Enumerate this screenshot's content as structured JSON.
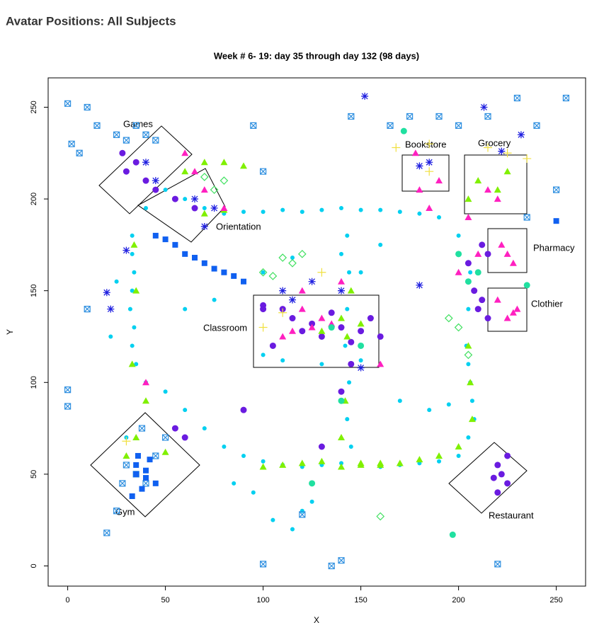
{
  "page_title": "Avatar Positions: All Subjects",
  "chart_data": {
    "type": "scatter",
    "title": "Week # 6- 19: day 35 through day 132 (98 days)",
    "x_label": "X",
    "y_label": "Y",
    "xlim": [
      -10,
      265
    ],
    "ylim": [
      -11,
      266
    ],
    "xticks": [
      0,
      50,
      100,
      150,
      200,
      250
    ],
    "yticks": [
      0,
      50,
      100,
      150,
      200,
      250
    ],
    "annotations": [
      "Games",
      "Orientation",
      "Bookstore",
      "Grocery",
      "Pharmacy",
      "Clothier",
      "Classroom",
      "Gym",
      "Restaurant"
    ],
    "series": [
      {
        "color": "#00d0f0",
        "marker": "circle",
        "x": [
          33,
          33,
          34,
          33,
          32,
          34,
          33,
          35,
          40,
          50,
          60,
          70,
          80,
          90,
          100,
          110,
          120,
          130,
          140,
          150,
          160,
          170,
          180,
          190,
          200,
          205,
          208,
          207,
          206,
          205,
          204,
          205,
          206,
          200,
          190,
          180,
          170,
          160,
          150,
          140,
          130,
          120,
          110,
          100,
          90,
          80,
          70,
          60,
          50,
          40,
          143,
          144,
          143,
          142,
          144,
          143,
          145,
          120,
          125,
          105,
          115,
          95,
          85,
          25,
          22,
          30,
          100,
          110,
          130,
          150,
          170,
          185,
          195,
          150,
          140,
          160,
          100,
          115,
          75,
          60
        ],
        "y": [
          180,
          170,
          160,
          150,
          140,
          130,
          120,
          110,
          100,
          95,
          85,
          75,
          65,
          60,
          57,
          55,
          54,
          55,
          56,
          55,
          54,
          55,
          56,
          57,
          60,
          70,
          80,
          90,
          100,
          110,
          120,
          140,
          160,
          180,
          190,
          192,
          193,
          194,
          194,
          195,
          194,
          193,
          194,
          193,
          193,
          192,
          195,
          200,
          205,
          195,
          180,
          160,
          140,
          120,
          100,
          80,
          65,
          30,
          35,
          25,
          20,
          40,
          45,
          155,
          125,
          70,
          115,
          112,
          110,
          112,
          90,
          85,
          88,
          160,
          170,
          175,
          160,
          168,
          145,
          140
        ]
      },
      {
        "color": "#6a1be0",
        "marker": "bigcircle",
        "x": [
          28,
          30,
          35,
          40,
          45,
          55,
          65,
          110,
          115,
          120,
          125,
          130,
          135,
          140,
          145,
          150,
          155,
          160,
          105,
          100,
          205,
          208,
          210,
          212,
          215,
          220,
          222,
          225,
          212,
          215,
          225,
          220,
          218,
          60,
          90,
          100,
          130,
          145,
          140,
          55
        ],
        "y": [
          225,
          215,
          220,
          210,
          205,
          200,
          195,
          140,
          135,
          128,
          132,
          125,
          138,
          130,
          122,
          128,
          135,
          125,
          120,
          142,
          165,
          150,
          140,
          175,
          170,
          55,
          50,
          45,
          145,
          135,
          60,
          40,
          48,
          70,
          85,
          140,
          65,
          110,
          95,
          75
        ]
      },
      {
        "color": "#80f000",
        "marker": "triangle",
        "x": [
          60,
          70,
          80,
          90,
          34,
          35,
          33,
          150,
          160,
          170,
          180,
          190,
          200,
          207,
          206,
          205,
          145,
          143,
          142,
          140,
          100,
          110,
          120,
          130,
          140,
          150,
          160,
          130,
          140,
          150,
          40,
          30,
          35,
          50,
          210,
          205,
          70,
          80,
          220,
          225
        ],
        "y": [
          215,
          220,
          220,
          218,
          175,
          150,
          110,
          56,
          55,
          56,
          58,
          60,
          65,
          80,
          100,
          120,
          150,
          125,
          90,
          70,
          54,
          55,
          56,
          57,
          54,
          55,
          56,
          128,
          135,
          132,
          90,
          60,
          70,
          62,
          210,
          200,
          192,
          194,
          205,
          215
        ]
      },
      {
        "color": "#3090e0",
        "marker": "boxx",
        "x": [
          0,
          2,
          6,
          10,
          15,
          25,
          30,
          35,
          40,
          45,
          0,
          0,
          10,
          95,
          100,
          120,
          135,
          140,
          145,
          165,
          175,
          190,
          200,
          215,
          230,
          240,
          255,
          250,
          235,
          220,
          38,
          35,
          40,
          30,
          28,
          45,
          50,
          20,
          25,
          100
        ],
        "y": [
          252,
          230,
          225,
          250,
          240,
          235,
          232,
          240,
          235,
          232,
          96,
          87,
          140,
          240,
          1,
          28,
          0,
          3,
          245,
          240,
          245,
          245,
          240,
          245,
          255,
          240,
          255,
          205,
          190,
          1,
          75,
          50,
          45,
          55,
          45,
          60,
          70,
          18,
          30,
          215
        ]
      },
      {
        "color": "#ff20c0",
        "marker": "triangle",
        "x": [
          60,
          65,
          70,
          125,
          130,
          115,
          120,
          135,
          110,
          180,
          185,
          190,
          178,
          215,
          220,
          225,
          228,
          222,
          230,
          225,
          220,
          228,
          200,
          210,
          205,
          120,
          140,
          160,
          80,
          40
        ],
        "y": [
          225,
          215,
          205,
          130,
          135,
          128,
          140,
          132,
          125,
          205,
          195,
          210,
          225,
          205,
          200,
          170,
          165,
          175,
          140,
          135,
          145,
          138,
          160,
          170,
          190,
          150,
          155,
          110,
          195,
          100
        ]
      },
      {
        "color": "#2020e0",
        "marker": "asterisk",
        "x": [
          152,
          213,
          232,
          222,
          45,
          40,
          30,
          20,
          22,
          180,
          185,
          110,
          115,
          140,
          125,
          70,
          75,
          65,
          180,
          150
        ],
        "y": [
          256,
          250,
          235,
          226,
          210,
          220,
          172,
          149,
          140,
          218,
          220,
          150,
          145,
          150,
          155,
          185,
          195,
          200,
          153,
          108
        ]
      },
      {
        "color": "#1060f0",
        "marker": "square",
        "x": [
          45,
          50,
          55,
          60,
          65,
          70,
          75,
          80,
          85,
          90,
          35,
          40,
          45,
          35,
          40,
          38,
          33,
          36,
          42,
          250
        ],
        "y": [
          180,
          178,
          175,
          170,
          168,
          165,
          162,
          160,
          158,
          155,
          50,
          48,
          45,
          55,
          52,
          42,
          38,
          60,
          58,
          188
        ]
      },
      {
        "color": "#40e060",
        "marker": "diamond",
        "x": [
          110,
          115,
          120,
          100,
          105,
          80,
          75,
          70,
          200,
          195,
          160,
          205
        ],
        "y": [
          168,
          165,
          170,
          160,
          158,
          210,
          205,
          212,
          130,
          135,
          27,
          115
        ]
      },
      {
        "color": "#20e0a0",
        "marker": "bigcircle",
        "x": [
          172,
          205,
          150,
          135,
          197,
          200,
          210,
          140,
          125,
          235
        ],
        "y": [
          237,
          155,
          120,
          130,
          17,
          170,
          160,
          90,
          45,
          153
        ]
      },
      {
        "color": "#f0e040",
        "marker": "plus",
        "x": [
          168,
          185,
          215,
          225,
          235,
          185,
          30,
          100,
          110,
          130
        ],
        "y": [
          228,
          230,
          228,
          225,
          222,
          215,
          68,
          130,
          138,
          160
        ]
      }
    ]
  }
}
